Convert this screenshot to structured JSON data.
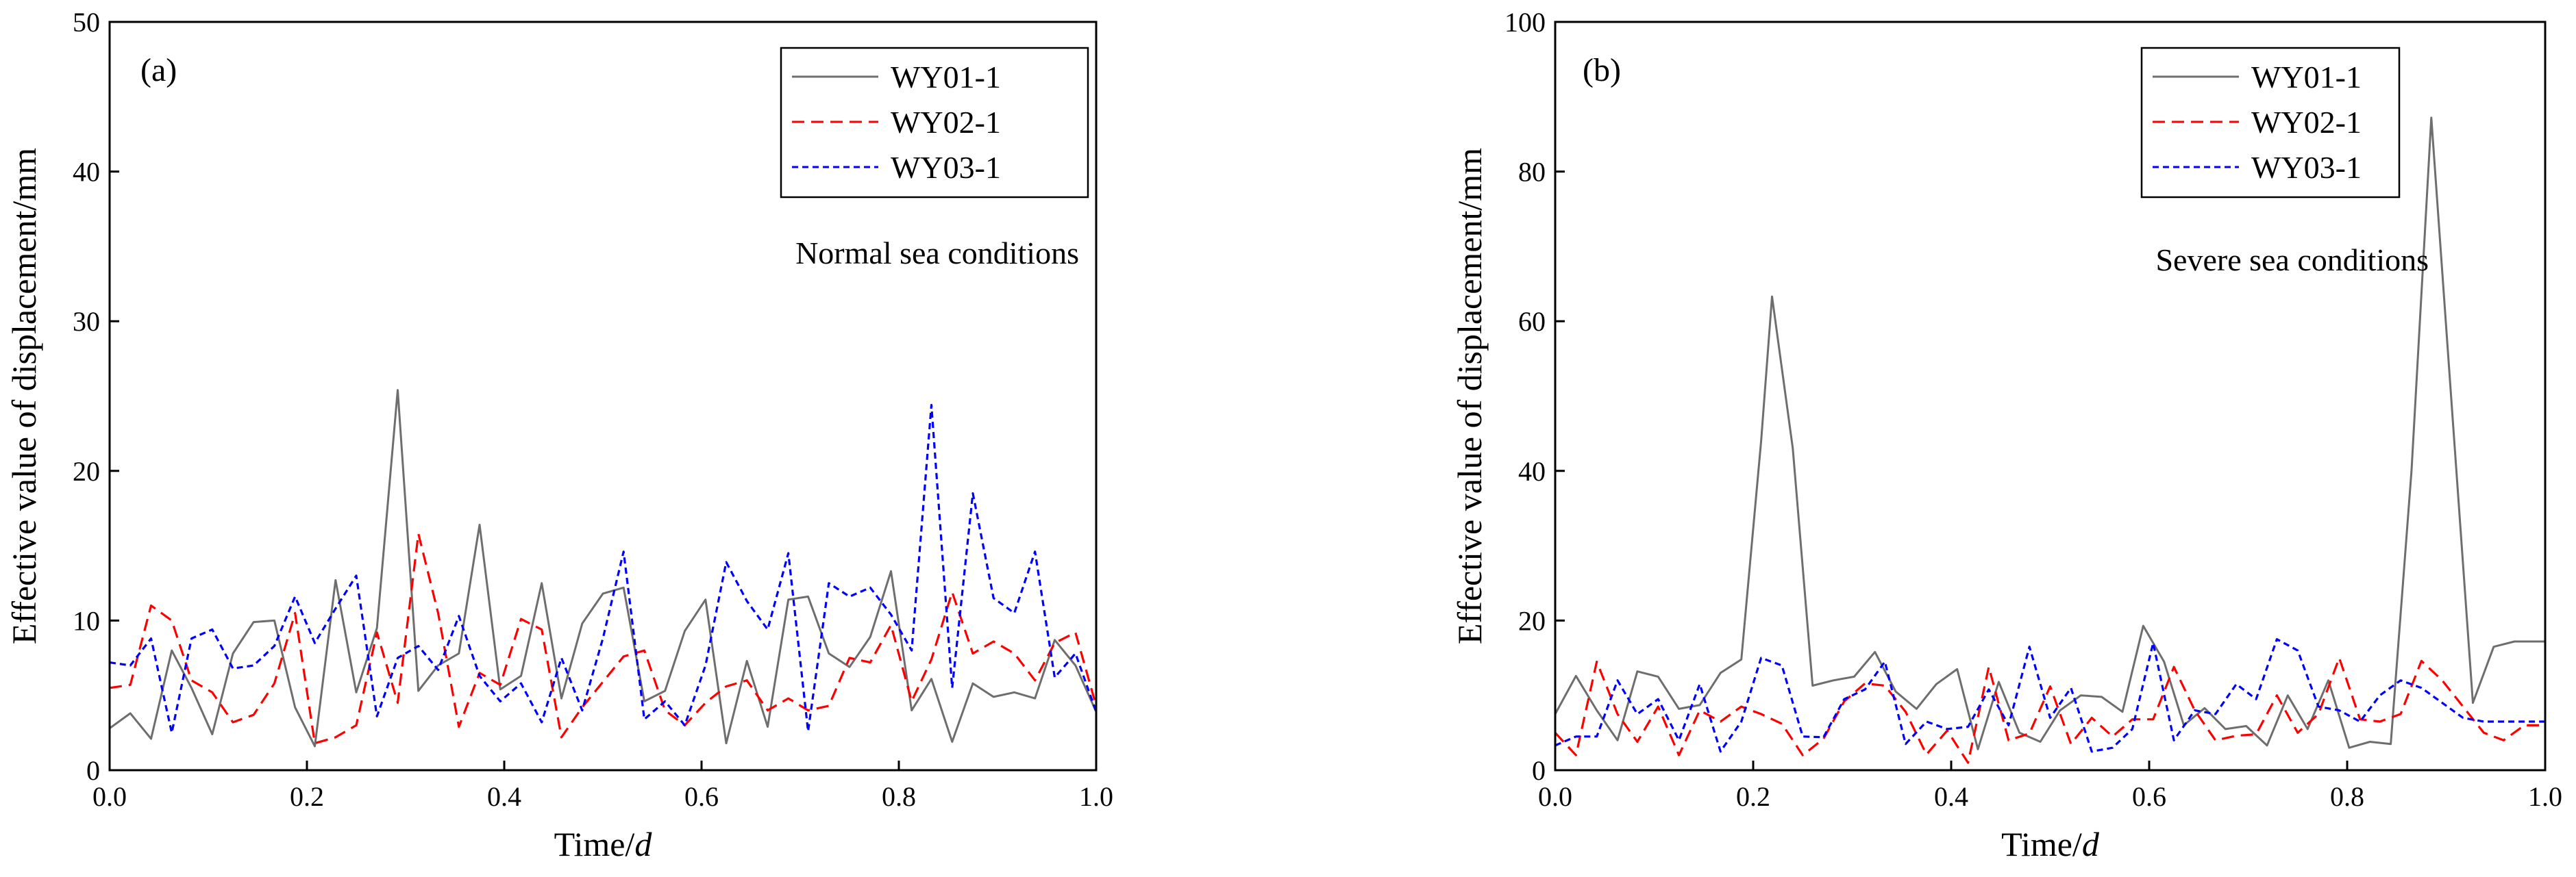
{
  "colors": {
    "WY01-1": "#6e6e6e",
    "WY02-1": "#ff0000",
    "WY03-1": "#0000ff"
  },
  "chart_data": [
    {
      "type": "line",
      "panel_label": "(a)",
      "annotation": "Normal sea conditions",
      "xlabel_main": "Time/",
      "xlabel_var": "d",
      "ylabel": "Effective value of displacement/mm",
      "xlim": [
        0,
        1.0
      ],
      "ylim": [
        0,
        50
      ],
      "xticks": [
        0.0,
        0.2,
        0.4,
        0.6,
        0.8,
        1.0
      ],
      "xtick_labels": [
        "0.0",
        "0.2",
        "0.4",
        "0.6",
        "0.8",
        "1.0"
      ],
      "yticks": [
        0,
        10,
        20,
        30,
        40,
        50
      ],
      "ytick_labels": [
        "0",
        "10",
        "20",
        "30",
        "40",
        "50"
      ],
      "legend": [
        "WY01-1",
        "WY02-1",
        "WY03-1"
      ],
      "legend_position": "top-right",
      "series": [
        {
          "name": "WY01-1",
          "style": "solid",
          "x": [
            0.0,
            0.021,
            0.042,
            0.063,
            0.083,
            0.104,
            0.125,
            0.146,
            0.167,
            0.188,
            0.208,
            0.229,
            0.25,
            0.271,
            0.292,
            0.313,
            0.333,
            0.354,
            0.375,
            0.396,
            0.417,
            0.438,
            0.458,
            0.479,
            0.5,
            0.521,
            0.542,
            0.563,
            0.583,
            0.604,
            0.625,
            0.646,
            0.667,
            0.688,
            0.708,
            0.729,
            0.75,
            0.771,
            0.792,
            0.813,
            0.833,
            0.854,
            0.875,
            0.896,
            0.917,
            0.938,
            0.958,
            0.979,
            1.0
          ],
          "y": [
            2.8,
            3.8,
            2.1,
            8.0,
            5.5,
            2.4,
            7.8,
            9.9,
            10.0,
            4.2,
            1.6,
            12.7,
            5.2,
            9.5,
            25.4,
            5.3,
            7.0,
            7.8,
            16.4,
            5.4,
            6.3,
            12.5,
            4.8,
            9.8,
            11.8,
            12.2,
            4.6,
            5.3,
            9.3,
            11.4,
            1.8,
            7.3,
            2.9,
            11.4,
            11.6,
            7.8,
            6.9,
            8.9,
            13.3,
            4.0,
            6.1,
            1.9,
            5.8,
            4.9,
            5.2,
            4.8,
            8.7,
            7.0,
            3.9
          ]
        },
        {
          "name": "WY02-1",
          "style": "dashed",
          "x": [
            0.0,
            0.021,
            0.042,
            0.063,
            0.083,
            0.104,
            0.125,
            0.146,
            0.167,
            0.188,
            0.208,
            0.229,
            0.25,
            0.271,
            0.292,
            0.313,
            0.333,
            0.354,
            0.375,
            0.396,
            0.417,
            0.438,
            0.458,
            0.479,
            0.5,
            0.521,
            0.542,
            0.563,
            0.583,
            0.604,
            0.625,
            0.646,
            0.667,
            0.688,
            0.708,
            0.729,
            0.75,
            0.771,
            0.792,
            0.813,
            0.833,
            0.854,
            0.875,
            0.896,
            0.917,
            0.938,
            0.958,
            0.979,
            1.0
          ],
          "y": [
            5.5,
            5.7,
            11.0,
            10.0,
            6.0,
            5.2,
            3.2,
            3.7,
            5.8,
            10.5,
            1.8,
            2.2,
            3.0,
            9.2,
            4.5,
            15.8,
            10.5,
            2.9,
            6.5,
            5.7,
            10.1,
            9.4,
            2.2,
            4.2,
            5.9,
            7.6,
            8.0,
            4.0,
            3.0,
            4.5,
            5.6,
            6.0,
            4.0,
            4.8,
            4.0,
            4.3,
            7.5,
            7.2,
            9.7,
            4.6,
            7.4,
            11.9,
            7.8,
            8.6,
            7.8,
            6.0,
            8.5,
            9.2,
            4.3
          ]
        },
        {
          "name": "WY03-1",
          "style": "dotted",
          "x": [
            0.0,
            0.021,
            0.042,
            0.063,
            0.083,
            0.104,
            0.125,
            0.146,
            0.167,
            0.188,
            0.208,
            0.229,
            0.25,
            0.271,
            0.292,
            0.313,
            0.333,
            0.354,
            0.375,
            0.396,
            0.417,
            0.438,
            0.458,
            0.479,
            0.5,
            0.521,
            0.542,
            0.563,
            0.583,
            0.604,
            0.625,
            0.646,
            0.667,
            0.688,
            0.708,
            0.729,
            0.75,
            0.771,
            0.792,
            0.813,
            0.833,
            0.854,
            0.875,
            0.896,
            0.917,
            0.938,
            0.958,
            0.979,
            1.0
          ],
          "y": [
            7.2,
            7.0,
            8.8,
            2.5,
            8.8,
            9.4,
            6.8,
            7.0,
            8.3,
            11.6,
            8.5,
            10.8,
            13.0,
            3.6,
            7.5,
            8.3,
            6.7,
            10.3,
            6.3,
            4.6,
            5.8,
            3.2,
            7.5,
            4.0,
            8.8,
            14.6,
            3.4,
            4.6,
            3.0,
            7.0,
            13.9,
            11.3,
            9.4,
            14.5,
            2.6,
            12.5,
            11.6,
            12.2,
            10.4,
            8.0,
            24.4,
            5.5,
            18.5,
            11.5,
            10.5,
            14.6,
            6.2,
            7.8,
            3.9
          ]
        }
      ]
    },
    {
      "type": "line",
      "panel_label": "(b)",
      "annotation": "Severe sea conditions",
      "xlabel_main": "Time/",
      "xlabel_var": "d",
      "ylabel": "Effective value of displacement/mm",
      "xlim": [
        0,
        1.0
      ],
      "ylim": [
        0,
        100
      ],
      "xticks": [
        0.0,
        0.2,
        0.4,
        0.6,
        0.8,
        1.0
      ],
      "xtick_labels": [
        "0.0",
        "0.2",
        "0.4",
        "0.6",
        "0.8",
        "1.0"
      ],
      "yticks": [
        0,
        20,
        40,
        60,
        80,
        100
      ],
      "ytick_labels": [
        "0",
        "20",
        "40",
        "60",
        "80",
        "100"
      ],
      "legend": [
        "WY01-1",
        "WY02-1",
        "WY03-1"
      ],
      "legend_position": "top-right",
      "series": [
        {
          "name": "WY01-1",
          "style": "solid",
          "x": [
            0.0,
            0.021,
            0.042,
            0.063,
            0.083,
            0.104,
            0.125,
            0.146,
            0.167,
            0.188,
            0.208,
            0.219,
            0.24,
            0.26,
            0.281,
            0.302,
            0.323,
            0.344,
            0.365,
            0.385,
            0.406,
            0.427,
            0.448,
            0.469,
            0.49,
            0.51,
            0.531,
            0.552,
            0.573,
            0.594,
            0.615,
            0.635,
            0.656,
            0.677,
            0.698,
            0.719,
            0.74,
            0.76,
            0.781,
            0.802,
            0.823,
            0.844,
            0.865,
            0.885,
            0.906,
            0.927,
            0.948,
            0.969,
            1.0
          ],
          "y": [
            7.5,
            12.6,
            8.0,
            4.0,
            13.2,
            12.5,
            8.2,
            8.7,
            13.0,
            14.8,
            44.0,
            63.3,
            43.0,
            11.3,
            12.0,
            12.5,
            15.8,
            10.5,
            8.2,
            11.5,
            13.5,
            2.8,
            11.8,
            5.0,
            3.8,
            8.0,
            10.0,
            9.8,
            7.8,
            19.3,
            14.5,
            6.0,
            8.3,
            5.5,
            5.9,
            3.3,
            10.0,
            5.5,
            12.0,
            3.0,
            3.8,
            3.5,
            40.0,
            87.2,
            48.0,
            9.0,
            16.5,
            17.2,
            17.2
          ]
        },
        {
          "name": "WY02-1",
          "style": "dashed",
          "x": [
            0.0,
            0.021,
            0.042,
            0.063,
            0.083,
            0.104,
            0.125,
            0.146,
            0.167,
            0.188,
            0.208,
            0.229,
            0.25,
            0.271,
            0.292,
            0.313,
            0.333,
            0.354,
            0.375,
            0.396,
            0.417,
            0.438,
            0.458,
            0.479,
            0.5,
            0.521,
            0.542,
            0.563,
            0.583,
            0.604,
            0.625,
            0.646,
            0.667,
            0.688,
            0.708,
            0.729,
            0.75,
            0.771,
            0.792,
            0.813,
            0.833,
            0.854,
            0.875,
            0.896,
            0.917,
            0.938,
            0.958,
            0.979,
            1.0
          ],
          "y": [
            5.0,
            2.0,
            14.5,
            7.5,
            3.8,
            8.5,
            2.0,
            8.0,
            6.5,
            8.5,
            7.5,
            6.2,
            2.0,
            4.2,
            9.2,
            11.6,
            11.3,
            7.8,
            2.1,
            5.3,
            1.0,
            13.8,
            4.0,
            4.9,
            11.2,
            3.5,
            7.0,
            4.5,
            6.8,
            6.8,
            13.8,
            8.0,
            4.0,
            4.6,
            4.8,
            10.0,
            5.0,
            7.5,
            15.0,
            6.8,
            6.5,
            7.5,
            14.6,
            12.0,
            8.5,
            5.0,
            4.0,
            6.0,
            6.0
          ]
        },
        {
          "name": "WY03-1",
          "style": "dotted",
          "x": [
            0.0,
            0.021,
            0.042,
            0.063,
            0.083,
            0.104,
            0.125,
            0.146,
            0.167,
            0.188,
            0.208,
            0.229,
            0.25,
            0.271,
            0.292,
            0.313,
            0.333,
            0.354,
            0.375,
            0.396,
            0.417,
            0.438,
            0.458,
            0.479,
            0.5,
            0.521,
            0.542,
            0.563,
            0.583,
            0.604,
            0.625,
            0.646,
            0.667,
            0.688,
            0.708,
            0.729,
            0.75,
            0.771,
            0.792,
            0.813,
            0.833,
            0.854,
            0.875,
            0.896,
            0.917,
            0.938,
            0.958,
            0.979,
            1.0
          ],
          "y": [
            3.3,
            4.5,
            4.5,
            12.0,
            7.5,
            9.5,
            4.0,
            11.5,
            2.5,
            6.5,
            15.0,
            14.0,
            4.5,
            4.4,
            9.5,
            10.8,
            14.5,
            3.5,
            6.5,
            5.5,
            5.8,
            10.8,
            6.0,
            16.5,
            7.0,
            11.0,
            2.5,
            3.0,
            5.5,
            17.0,
            4.0,
            8.0,
            7.5,
            11.5,
            9.5,
            17.5,
            16.0,
            8.5,
            8.0,
            6.5,
            10.0,
            12.0,
            11.0,
            9.0,
            7.0,
            6.5,
            6.5,
            6.5,
            6.5
          ]
        }
      ]
    }
  ]
}
